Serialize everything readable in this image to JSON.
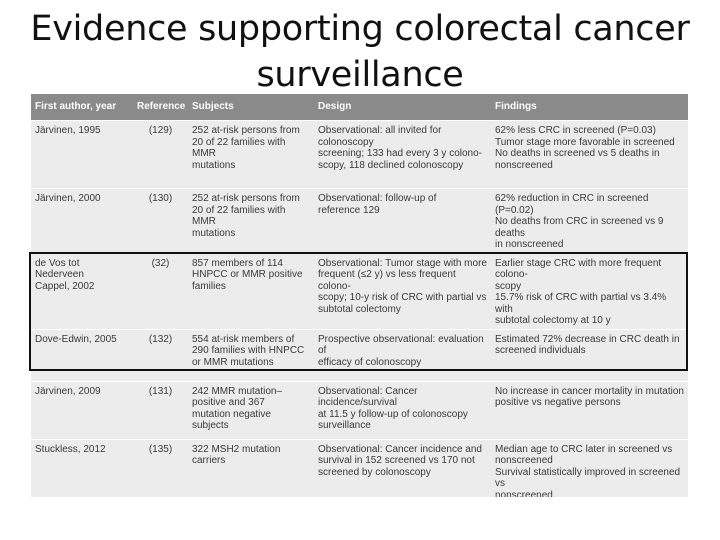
{
  "slide": {
    "title": "Evidence supporting colorectal cancer surveillance"
  },
  "table": {
    "headers": [
      "First author, year",
      "Reference",
      "Subjects",
      "Design",
      "Findings"
    ],
    "rows": [
      {
        "author": "Järvinen, 1995",
        "reference": "(129)",
        "subjects": "252 at-risk persons from\n20 of 22 families with MMR\nmutations",
        "design": "Observational: all invited for colonoscopy\nscreening; 133 had every 3 y colono-\nscopy, 118 declined colonoscopy",
        "findings": "62% less CRC in screened (P=0.03)\nTumor stage more favorable in screened\nNo deaths in screened vs 5 deaths in\nnonscreened"
      },
      {
        "author": "Järvinen, 2000",
        "reference": "(130)",
        "subjects": "252 at-risk persons from\n20 of 22 families with MMR\nmutations",
        "design": "Observational: follow-up of\nreference 129",
        "findings": "62% reduction in CRC in screened (P=0.02)\nNo deaths from CRC in screened vs 9 deaths\nin nonscreened"
      },
      {
        "author": "de Vos tot Nederveen\nCappel, 2002",
        "reference": "(32)",
        "subjects": "857 members of 114\nHNPCC or MMR positive\nfamilies",
        "design": "Observational: Tumor stage with more\nfrequent (≤2 y) vs less frequent colono-\nscopy; 10-y risk of CRC with partial vs\nsubtotal colectomy",
        "findings": "Earlier stage CRC with more frequent colono-\nscopy\n15.7% risk of CRC with partial vs 3.4% with\nsubtotal colectomy at 10 y"
      },
      {
        "author": "Dove-Edwin, 2005",
        "reference": "(132)",
        "subjects": "554 at-risk members of\n290 families with HNPCC\nor MMR mutations",
        "design": "Prospective observational: evaluation of\nefficacy of colonoscopy",
        "findings": "Estimated 72% decrease in CRC death in\nscreened individuals"
      },
      {
        "author": "Järvinen, 2009",
        "reference": "(131)",
        "subjects": "242 MMR mutation–\npositive and 367\nmutation negative subjects",
        "design": "Observational: Cancer incidence/survival\nat 11.5 y follow-up of colonoscopy\nsurveillance",
        "findings": "No increase in cancer mortality in mutation\npositive vs negative persons"
      },
      {
        "author": "Stuckless, 2012",
        "reference": "(135)",
        "subjects": "322 MSH2 mutation\ncarriers",
        "design": "Observational: Cancer incidence and\nsurvival in 152 screened vs 170 not\nscreened by colonoscopy",
        "findings": "Median age to CRC later in screened vs\nnonscreened\nSurvival statistically improved in screened vs\nnonscreened"
      }
    ]
  }
}
